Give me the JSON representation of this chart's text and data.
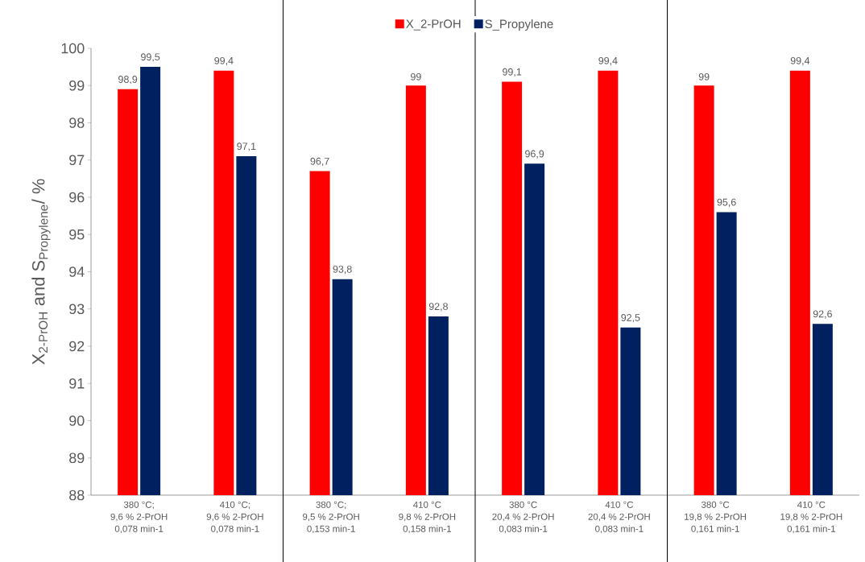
{
  "chart_data": {
    "type": "bar",
    "ylabel": "\\text{X}_{\\text{2-PrOH}}\\text{ and S}_{\\text{Propylene}}\\text{/ \\%}",
    "categories": [
      "380 °C;\n9,6 % 2-PrOH\n0,078 min-1",
      "410 °C;\n9,6 % 2-PrOH\n0,078 min-1",
      "380 °C;\n9,5 % 2-PrOH\n0,153 min-1",
      "410 °C\n9,8 % 2-PrOH\n0,158 min-1",
      "380 °C\n20,4 % 2-PrOH\n0,083 min-1",
      "410 °C\n20,4 % 2-PrOH\n0,083 min-1",
      "380 °C\n19,8 % 2-PrOH\n0,161 min-1",
      "410 °C\n19,8 % 2-PrOH\n0,161 min-1"
    ],
    "series": [
      {
        "name": "X_2-PrOH",
        "color": "#ff0000",
        "values": [
          98.9,
          99.4,
          96.7,
          99,
          99.1,
          99.4,
          99,
          99.4
        ],
        "value_labels": [
          "98,9",
          "99,4",
          "96,7",
          "99",
          "99,1",
          "99,4",
          "99",
          "99,4"
        ]
      },
      {
        "name": "S_Propylene",
        "color": "#002060",
        "values": [
          99.5,
          97.1,
          93.8,
          92.8,
          96.9,
          92.5,
          95.6,
          92.6
        ],
        "value_labels": [
          "99,5",
          "97,1",
          "93,8",
          "92,8",
          "96,9",
          "92,5",
          "95,6",
          "92,6"
        ]
      }
    ],
    "ylim": [
      88,
      100
    ],
    "yticks": [
      88,
      89,
      90,
      91,
      92,
      93,
      94,
      95,
      96,
      97,
      98,
      99,
      100
    ],
    "grid": false,
    "legend": "top"
  }
}
